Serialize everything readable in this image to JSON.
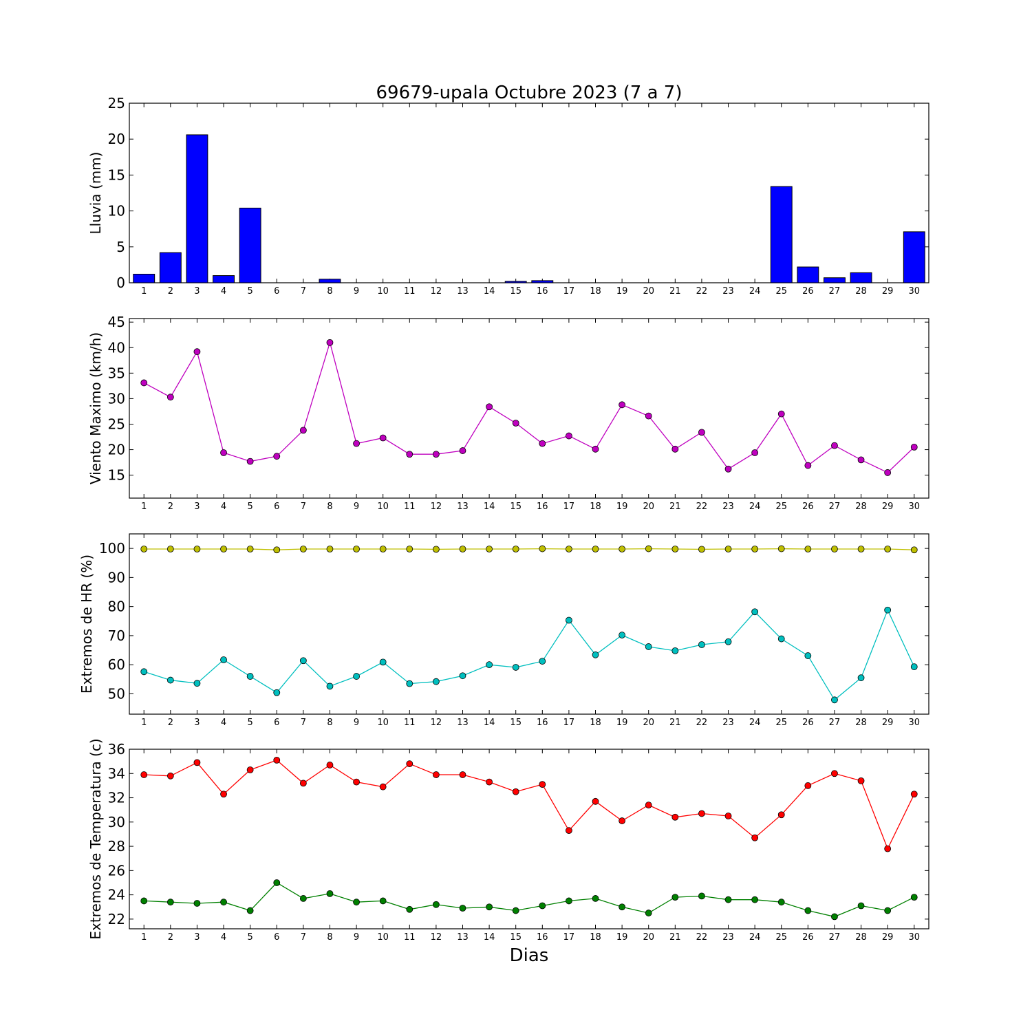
{
  "figure": {
    "title": "69679-upala Octubre 2023  (7 a 7)",
    "xlabel": "Dias"
  },
  "chart_data": [
    {
      "type": "bar",
      "ylabel": "Lluvia (mm)",
      "ylim": [
        0,
        25
      ],
      "yticks": [
        0,
        5,
        10,
        15,
        20,
        25
      ],
      "categories": [
        "1",
        "2",
        "3",
        "4",
        "5",
        "6",
        "7",
        "8",
        "9",
        "10",
        "11",
        "12",
        "13",
        "14",
        "15",
        "16",
        "17",
        "18",
        "19",
        "20",
        "21",
        "22",
        "23",
        "24",
        "25",
        "26",
        "27",
        "28",
        "29",
        "30"
      ],
      "series": [
        {
          "color": "#0000ff",
          "values": [
            1.2,
            4.2,
            20.6,
            1.0,
            10.4,
            0,
            0,
            0.5,
            0,
            0,
            0,
            0,
            0,
            0,
            0.2,
            0.3,
            0,
            0,
            0,
            0,
            0,
            0,
            0,
            0,
            13.4,
            2.2,
            0.7,
            1.4,
            0,
            7.1
          ]
        }
      ]
    },
    {
      "type": "line",
      "ylabel": "Viento Maximo (km/h)",
      "ylim": [
        10.5,
        45.7
      ],
      "yticks": [
        15,
        20,
        25,
        30,
        35,
        40,
        45
      ],
      "categories": [
        "1",
        "2",
        "3",
        "4",
        "5",
        "6",
        "7",
        "8",
        "9",
        "10",
        "11",
        "12",
        "13",
        "14",
        "15",
        "16",
        "17",
        "18",
        "19",
        "20",
        "21",
        "22",
        "23",
        "24",
        "25",
        "26",
        "27",
        "28",
        "29",
        "30"
      ],
      "series": [
        {
          "color": "#bf00bf",
          "values": [
            33.1,
            30.3,
            39.2,
            19.4,
            17.7,
            18.7,
            23.8,
            41.0,
            21.2,
            22.3,
            19.1,
            19.1,
            19.8,
            28.4,
            25.2,
            21.2,
            22.7,
            20.1,
            28.8,
            26.6,
            20.1,
            23.4,
            16.2,
            19.4,
            27.0,
            16.9,
            20.8,
            18.0,
            15.5,
            20.5
          ]
        }
      ]
    },
    {
      "type": "line",
      "ylabel": "Extremos de HR (%)",
      "ylim": [
        43,
        105
      ],
      "yticks": [
        50,
        60,
        70,
        80,
        90,
        100
      ],
      "categories": [
        "1",
        "2",
        "3",
        "4",
        "5",
        "6",
        "7",
        "8",
        "9",
        "10",
        "11",
        "12",
        "13",
        "14",
        "15",
        "16",
        "17",
        "18",
        "19",
        "20",
        "21",
        "22",
        "23",
        "24",
        "25",
        "26",
        "27",
        "28",
        "29",
        "30"
      ],
      "series": [
        {
          "color": "#bfbf00",
          "values": [
            99.8,
            99.8,
            99.8,
            99.8,
            99.8,
            99.5,
            99.8,
            99.8,
            99.8,
            99.8,
            99.8,
            99.7,
            99.8,
            99.8,
            99.8,
            99.9,
            99.8,
            99.8,
            99.8,
            99.9,
            99.8,
            99.7,
            99.8,
            99.8,
            99.9,
            99.8,
            99.8,
            99.8,
            99.8,
            99.5
          ]
        },
        {
          "color": "#00bfbf",
          "values": [
            57.6,
            54.7,
            53.6,
            61.7,
            56.0,
            50.4,
            61.4,
            52.6,
            56.0,
            60.9,
            53.5,
            54.2,
            56.2,
            60.0,
            59.1,
            61.2,
            75.3,
            63.4,
            70.2,
            66.2,
            64.8,
            66.9,
            67.9,
            78.2,
            68.9,
            63.1,
            47.9,
            55.5,
            78.8,
            59.3
          ]
        }
      ]
    },
    {
      "type": "line",
      "ylabel": "Extremos de Temperatura (c)",
      "ylim": [
        21.2,
        36.0
      ],
      "yticks": [
        22,
        24,
        26,
        28,
        30,
        32,
        34,
        36
      ],
      "categories": [
        "1",
        "2",
        "3",
        "4",
        "5",
        "6",
        "7",
        "8",
        "9",
        "10",
        "11",
        "12",
        "13",
        "14",
        "15",
        "16",
        "17",
        "18",
        "19",
        "20",
        "21",
        "22",
        "23",
        "24",
        "25",
        "26",
        "27",
        "28",
        "29",
        "30"
      ],
      "series": [
        {
          "color": "#ff0000",
          "values": [
            33.9,
            33.8,
            34.9,
            32.3,
            34.3,
            35.1,
            33.2,
            34.7,
            33.3,
            32.9,
            34.8,
            33.9,
            33.9,
            33.3,
            32.5,
            33.1,
            29.3,
            31.7,
            30.1,
            31.4,
            30.4,
            30.7,
            30.5,
            28.7,
            30.6,
            33.0,
            34.0,
            33.4,
            27.8,
            32.3
          ]
        },
        {
          "color": "#008000",
          "values": [
            23.5,
            23.4,
            23.3,
            23.4,
            22.7,
            25.0,
            23.7,
            24.1,
            23.4,
            23.5,
            22.8,
            23.2,
            22.9,
            23.0,
            22.7,
            23.1,
            23.5,
            23.7,
            23.0,
            22.5,
            23.8,
            23.9,
            23.6,
            23.6,
            23.4,
            22.7,
            22.2,
            23.1,
            22.7,
            23.8
          ]
        }
      ]
    }
  ]
}
